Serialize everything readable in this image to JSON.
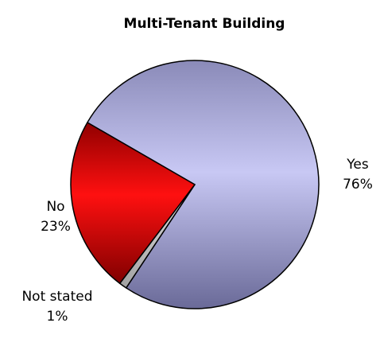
{
  "chart_data": {
    "type": "pie",
    "title": "Multi-Tenant Building",
    "categories": [
      "Yes",
      "Not stated",
      "No"
    ],
    "values": [
      76,
      1,
      23
    ],
    "value_labels": [
      "76%",
      "1%",
      "23%"
    ],
    "colors": [
      "#c4c4f0",
      "#d8d8d8",
      "#ff0000"
    ]
  }
}
